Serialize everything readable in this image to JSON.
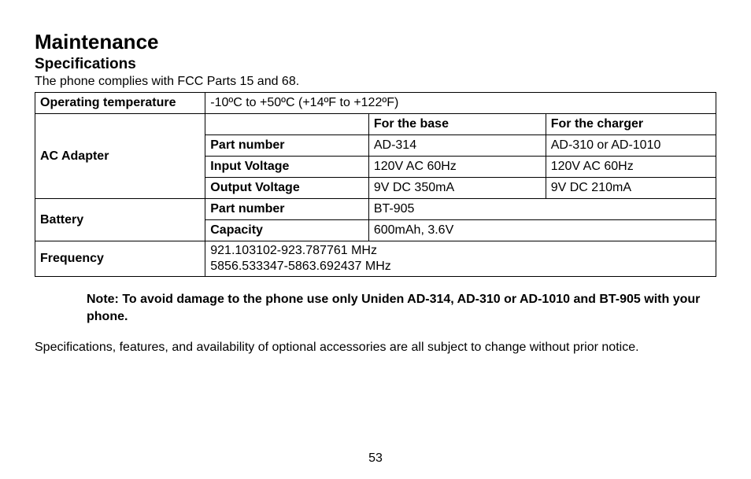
{
  "title": "Maintenance",
  "subtitle": "Specifications",
  "intro": "The phone complies with FCC Parts 15 and 68.",
  "table": {
    "col_widths_pct": [
      25,
      24,
      26,
      25
    ],
    "operating_temp_label": "Operating temperature",
    "operating_temp_value": "-10ºC to +50ºC (+14ºF to +122ºF)",
    "ac_adapter_label": "AC Adapter",
    "header_base": "For the base",
    "header_charger": "For the charger",
    "part_number_label": "Part number",
    "ac_part_base": "AD-314",
    "ac_part_charger": "AD-310 or AD-1010",
    "input_voltage_label": "Input Voltage",
    "input_voltage_base": "120V AC 60Hz",
    "input_voltage_charger": "120V AC 60Hz",
    "output_voltage_label": "Output Voltage",
    "output_voltage_base": "9V DC 350mA",
    "output_voltage_charger": "9V DC 210mA",
    "battery_label": "Battery",
    "battery_part_label": "Part number",
    "battery_part_value": "BT-905",
    "capacity_label": "Capacity",
    "capacity_value": "600mAh, 3.6V",
    "frequency_label": "Frequency",
    "frequency_line1": "921.103102-923.787761 MHz",
    "frequency_line2": "5856.533347-5863.692437 MHz"
  },
  "note": "Note: To avoid damage to the phone use only Uniden AD-314, AD-310 or AD-1010 and BT-905 with your phone.",
  "disclaimer": "Specifications, features, and availability of optional accessories are all subject to change without prior notice.",
  "page_number": "53"
}
